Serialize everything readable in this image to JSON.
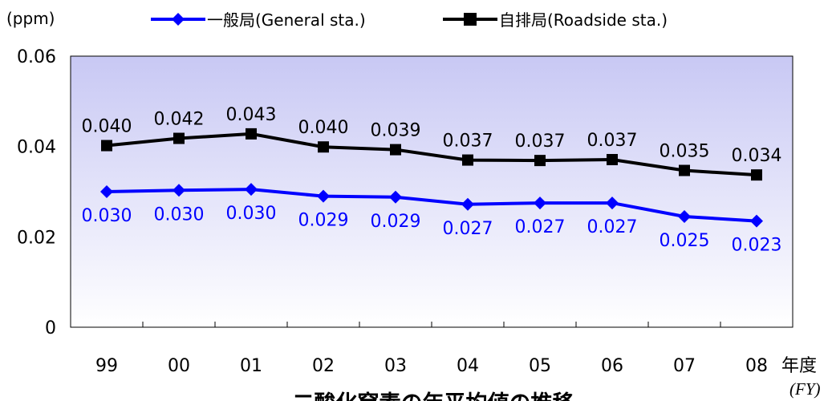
{
  "chart_data": {
    "type": "line",
    "title": "二酸化窒素の年平均値の推移",
    "y_unit": "(ppm)",
    "x_unit": "年度",
    "x_unit_en": "(FY)",
    "categories": [
      "99",
      "00",
      "01",
      "02",
      "03",
      "04",
      "05",
      "06",
      "07",
      "08"
    ],
    "ylim": [
      0,
      0.06
    ],
    "yticks": [
      "0",
      "0.02",
      "0.04",
      "0.06"
    ],
    "grid": false,
    "legend_position": "top",
    "series": [
      {
        "name": "一般局(General sta.)",
        "color": "#0000ff",
        "marker": "diamond",
        "values": [
          0.03,
          0.0303,
          0.0305,
          0.029,
          0.0288,
          0.0272,
          0.0275,
          0.0275,
          0.0245,
          0.0235
        ],
        "labels": [
          "0.030",
          "0.030",
          "0.030",
          "0.029",
          "0.029",
          "0.027",
          "0.027",
          "0.027",
          "0.025",
          "0.023"
        ]
      },
      {
        "name": "自排局(Roadside sta.)",
        "color": "#000000",
        "marker": "square",
        "values": [
          0.0402,
          0.0418,
          0.0428,
          0.0399,
          0.0393,
          0.037,
          0.0369,
          0.0371,
          0.0347,
          0.0337
        ],
        "labels": [
          "0.040",
          "0.042",
          "0.043",
          "0.040",
          "0.039",
          "0.037",
          "0.037",
          "0.037",
          "0.035",
          "0.034"
        ]
      }
    ]
  }
}
